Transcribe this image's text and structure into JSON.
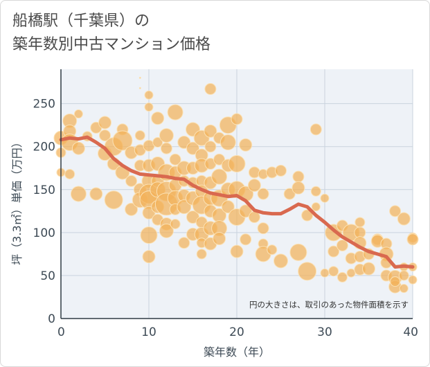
{
  "title": {
    "line1": "船橋駅（千葉県）の",
    "line2": "築年数別中古マンション価格"
  },
  "chart_data": {
    "type": "scatter",
    "title": "船橋駅（千葉県）の築年数別中古マンション価格",
    "xlabel": "築年数（年）",
    "ylabel": "坪（3.3㎡）単価（万円）",
    "xlim": [
      0,
      40
    ],
    "ylim": [
      0,
      290
    ],
    "xticks": [
      0,
      10,
      20,
      30,
      40
    ],
    "yticks": [
      0,
      50,
      100,
      150,
      200,
      250
    ],
    "grid": true,
    "note": "円の大きさは、取引のあった物件面積を示す",
    "colors": {
      "bubble": "#f2b25a",
      "line": "#d9694f",
      "grid": "#c9d3de",
      "plot_bg": "#eef2f7"
    },
    "series": [
      {
        "type": "line",
        "x": [
          0,
          1,
          2,
          3,
          4,
          5,
          6,
          7,
          8,
          9,
          10,
          11,
          12,
          13,
          14,
          15,
          16,
          17,
          18,
          19,
          20,
          21,
          22,
          23,
          24,
          25,
          26,
          27,
          28,
          29,
          30,
          31,
          32,
          33,
          34,
          35,
          36,
          37,
          38,
          39,
          40
        ],
        "values": [
          208,
          210,
          209,
          211,
          205,
          198,
          186,
          178,
          172,
          168,
          167,
          166,
          165,
          163,
          162,
          155,
          150,
          146,
          144,
          142,
          143,
          137,
          126,
          123,
          122,
          122,
          127,
          133,
          130,
          120,
          112,
          103,
          95,
          89,
          83,
          78,
          75,
          72,
          60,
          61,
          60
        ]
      },
      {
        "type": "bubble",
        "points": [
          [
            0,
            210,
            10
          ],
          [
            0,
            193,
            7
          ],
          [
            0,
            170,
            6
          ],
          [
            1,
            230,
            10
          ],
          [
            1,
            218,
            9
          ],
          [
            1,
            205,
            12
          ],
          [
            1,
            168,
            7
          ],
          [
            2,
            238,
            6
          ],
          [
            2,
            198,
            9
          ],
          [
            2,
            145,
            11
          ],
          [
            3,
            212,
            7
          ],
          [
            4,
            222,
            8
          ],
          [
            4,
            145,
            9
          ],
          [
            5,
            228,
            9
          ],
          [
            5,
            213,
            8
          ],
          [
            5,
            192,
            10
          ],
          [
            6,
            200,
            13
          ],
          [
            6,
            180,
            9
          ],
          [
            6,
            138,
            13
          ],
          [
            7,
            220,
            8
          ],
          [
            7,
            207,
            14
          ],
          [
            7,
            170,
            10
          ],
          [
            8,
            193,
            9
          ],
          [
            8,
            160,
            8
          ],
          [
            8,
            127,
            9
          ],
          [
            9,
            280,
            1
          ],
          [
            9,
            268,
            1
          ],
          [
            9,
            213,
            7
          ],
          [
            9,
            196,
            8
          ],
          [
            9,
            178,
            8
          ],
          [
            9,
            150,
            9
          ],
          [
            9,
            138,
            11
          ],
          [
            10,
            260,
            6
          ],
          [
            10,
            246,
            6
          ],
          [
            10,
            201,
            8
          ],
          [
            10,
            178,
            9
          ],
          [
            10,
            160,
            10
          ],
          [
            10,
            145,
            14
          ],
          [
            10,
            138,
            13
          ],
          [
            10,
            123,
            9
          ],
          [
            10,
            97,
            12
          ],
          [
            10,
            72,
            9
          ],
          [
            11,
            233,
            9
          ],
          [
            11,
            205,
            7
          ],
          [
            11,
            180,
            10
          ],
          [
            11,
            160,
            9
          ],
          [
            11,
            150,
            11
          ],
          [
            11,
            130,
            9
          ],
          [
            11,
            115,
            8
          ],
          [
            12,
            213,
            10
          ],
          [
            12,
            198,
            8
          ],
          [
            12,
            170,
            12
          ],
          [
            12,
            148,
            14
          ],
          [
            12,
            133,
            16
          ],
          [
            12,
            110,
            9
          ],
          [
            12,
            102,
            10
          ],
          [
            13,
            240,
            11
          ],
          [
            13,
            185,
            8
          ],
          [
            13,
            170,
            9
          ],
          [
            13,
            155,
            9
          ],
          [
            13,
            140,
            11
          ],
          [
            13,
            127,
            8
          ],
          [
            13,
            110,
            7
          ],
          [
            14,
            205,
            9
          ],
          [
            14,
            175,
            10
          ],
          [
            14,
            160,
            8
          ],
          [
            14,
            143,
            9
          ],
          [
            14,
            130,
            10
          ],
          [
            14,
            88,
            8
          ],
          [
            15,
            220,
            10
          ],
          [
            15,
            198,
            9
          ],
          [
            15,
            175,
            9
          ],
          [
            15,
            158,
            8
          ],
          [
            15,
            140,
            10
          ],
          [
            15,
            118,
            9
          ],
          [
            15,
            98,
            9
          ],
          [
            16,
            210,
            11
          ],
          [
            16,
            190,
            9
          ],
          [
            16,
            178,
            10
          ],
          [
            16,
            160,
            8
          ],
          [
            16,
            148,
            9
          ],
          [
            16,
            132,
            13
          ],
          [
            16,
            112,
            8
          ],
          [
            16,
            98,
            10
          ],
          [
            16,
            88,
            7
          ],
          [
            16,
            75,
            7
          ],
          [
            17,
            267,
            8
          ],
          [
            17,
            218,
            9
          ],
          [
            17,
            200,
            8
          ],
          [
            17,
            180,
            8
          ],
          [
            17,
            158,
            9
          ],
          [
            17,
            140,
            10
          ],
          [
            17,
            125,
            9
          ],
          [
            17,
            105,
            10
          ],
          [
            17,
            87,
            9
          ],
          [
            18,
            210,
            8
          ],
          [
            18,
            185,
            8
          ],
          [
            18,
            165,
            11
          ],
          [
            18,
            140,
            12
          ],
          [
            18,
            120,
            10
          ],
          [
            18,
            105,
            11
          ],
          [
            18,
            93,
            9
          ],
          [
            19,
            225,
            12
          ],
          [
            19,
            205,
            11
          ],
          [
            19,
            178,
            9
          ],
          [
            19,
            150,
            10
          ],
          [
            19,
            130,
            9
          ],
          [
            20,
            232,
            8
          ],
          [
            20,
            180,
            12
          ],
          [
            20,
            150,
            12
          ],
          [
            20,
            118,
            12
          ],
          [
            20,
            78,
            9
          ],
          [
            21,
            202,
            9
          ],
          [
            21,
            145,
            11
          ],
          [
            21,
            125,
            9
          ],
          [
            21,
            92,
            8
          ],
          [
            22,
            170,
            8
          ],
          [
            22,
            155,
            9
          ],
          [
            22,
            118,
            8
          ],
          [
            23,
            168,
            7
          ],
          [
            23,
            145,
            8
          ],
          [
            23,
            105,
            8
          ],
          [
            23,
            87,
            7
          ],
          [
            23,
            75,
            11
          ],
          [
            24,
            170,
            8
          ],
          [
            24,
            80,
            7
          ],
          [
            25,
            172,
            8
          ],
          [
            25,
            67,
            10
          ],
          [
            26,
            145,
            8
          ],
          [
            27,
            165,
            8
          ],
          [
            27,
            152,
            9
          ],
          [
            27,
            77,
            12
          ],
          [
            28,
            120,
            8
          ],
          [
            28,
            55,
            13
          ],
          [
            29,
            220,
            8
          ],
          [
            29,
            148,
            7
          ],
          [
            29,
            130,
            6
          ],
          [
            30,
            140,
            6
          ],
          [
            30,
            53,
            6
          ],
          [
            31,
            100,
            12
          ],
          [
            31,
            78,
            8
          ],
          [
            31,
            55,
            7
          ],
          [
            32,
            108,
            8
          ],
          [
            32,
            85,
            8
          ],
          [
            32,
            48,
            7
          ],
          [
            33,
            100,
            12
          ],
          [
            33,
            70,
            8
          ],
          [
            33,
            53,
            6
          ],
          [
            34,
            112,
            7
          ],
          [
            34,
            100,
            8
          ],
          [
            34,
            88,
            9
          ],
          [
            34,
            72,
            8
          ],
          [
            34,
            57,
            8
          ],
          [
            35,
            75,
            8
          ],
          [
            35,
            58,
            9
          ],
          [
            36,
            92,
            8
          ],
          [
            36,
            90,
            9
          ],
          [
            37,
            87,
            8
          ],
          [
            37,
            75,
            10
          ],
          [
            37,
            65,
            8
          ],
          [
            37,
            50,
            8
          ],
          [
            38,
            125,
            8
          ],
          [
            38,
            48,
            10
          ],
          [
            38,
            37,
            9
          ],
          [
            38,
            43,
            7
          ],
          [
            39,
            116,
            9
          ],
          [
            39,
            60,
            6
          ],
          [
            39,
            50,
            7
          ],
          [
            39,
            35,
            6
          ],
          [
            40,
            94,
            7
          ],
          [
            40,
            92,
            8
          ],
          [
            40,
            60,
            6
          ],
          [
            40,
            45,
            6
          ]
        ]
      }
    ]
  }
}
